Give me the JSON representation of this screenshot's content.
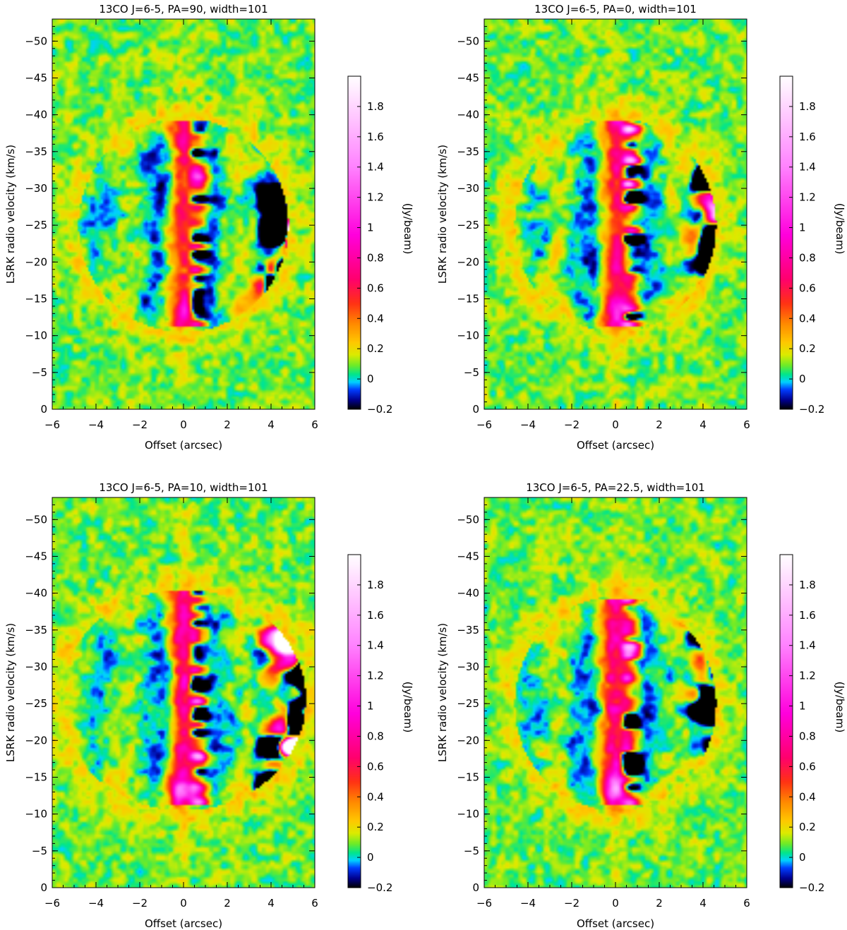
{
  "chart_data": [
    {
      "type": "heatmap",
      "title": "13CO J=6-5, PA=90, width=101",
      "xlabel": "Offset (arcsec)",
      "ylabel": "LSRK radio velocity  (km/s)",
      "colorbar_label": "(Jy/beam)",
      "xlim": [
        -6,
        6
      ],
      "ylim": [
        0,
        -53
      ],
      "x_ticks": [
        -6,
        -4,
        -2,
        0,
        2,
        4,
        6
      ],
      "y_ticks": [
        0,
        -5,
        -10,
        -15,
        -20,
        -25,
        -30,
        -35,
        -40,
        -45,
        -50
      ],
      "colorbar_range": [
        -0.2,
        2.0
      ],
      "colorbar_ticks": [
        -0.2,
        0,
        0.2,
        0.4,
        0.6,
        0.8,
        1,
        1.2,
        1.4,
        1.6,
        1.8
      ],
      "features": {
        "jet_velocity_range": [
          -12,
          -38
        ],
        "jet_offset": 0.0,
        "jet_peak": 0.55,
        "ring_halfwidth": 4.2,
        "negative_bowl": true
      }
    },
    {
      "type": "heatmap",
      "title": "13CO J=6-5, PA=0, width=101",
      "xlabel": "Offset (arcsec)",
      "ylabel": "LSRK radio velocity  (km/s)",
      "colorbar_label": "(Jy/beam)",
      "xlim": [
        -6,
        6
      ],
      "ylim": [
        0,
        -53
      ],
      "x_ticks": [
        -6,
        -4,
        -2,
        0,
        2,
        4,
        6
      ],
      "y_ticks": [
        0,
        -5,
        -10,
        -15,
        -20,
        -25,
        -30,
        -35,
        -40,
        -45,
        -50
      ],
      "colorbar_range": [
        -0.2,
        2.0
      ],
      "colorbar_ticks": [
        -0.2,
        0,
        0.2,
        0.4,
        0.6,
        0.8,
        1,
        1.2,
        1.4,
        1.6,
        1.8
      ],
      "features": {
        "jet_velocity_range": [
          -12,
          -38
        ],
        "jet_offset": 0.1,
        "jet_peak": 0.7,
        "ring_halfwidth": 4.0,
        "negative_bowl": true
      }
    },
    {
      "type": "heatmap",
      "title": "13CO J=6-5, PA=10, width=101",
      "xlabel": "Offset (arcsec)",
      "ylabel": "LSRK radio velocity  (km/s)",
      "colorbar_label": "(Jy/beam)",
      "xlim": [
        -6,
        6
      ],
      "ylim": [
        0,
        -53
      ],
      "x_ticks": [
        -6,
        -4,
        -2,
        0,
        2,
        4,
        6
      ],
      "y_ticks": [
        0,
        -5,
        -10,
        -15,
        -20,
        -25,
        -30,
        -35,
        -40,
        -45,
        -50
      ],
      "colorbar_range": [
        -0.2,
        2.0
      ],
      "colorbar_ticks": [
        -0.2,
        0,
        0.2,
        0.4,
        0.6,
        0.8,
        1,
        1.2,
        1.4,
        1.6,
        1.8
      ],
      "features": {
        "jet_velocity_range": [
          -12,
          -39
        ],
        "jet_offset": 0.0,
        "jet_peak": 0.8,
        "ring_halfwidth": 5.0,
        "negative_bowl": true
      }
    },
    {
      "type": "heatmap",
      "title": "13CO J=6-5, PA=22.5, width=101",
      "xlabel": "Offset (arcsec)",
      "ylabel": "LSRK radio velocity  (km/s)",
      "colorbar_label": "(Jy/beam)",
      "xlim": [
        -6,
        6
      ],
      "ylim": [
        0,
        -53
      ],
      "x_ticks": [
        -6,
        -4,
        -2,
        0,
        2,
        4,
        6
      ],
      "y_ticks": [
        0,
        -5,
        -10,
        -15,
        -20,
        -25,
        -30,
        -35,
        -40,
        -45,
        -50
      ],
      "colorbar_range": [
        -0.2,
        2.0
      ],
      "colorbar_ticks": [
        -0.2,
        0,
        0.2,
        0.4,
        0.6,
        0.8,
        1,
        1.2,
        1.4,
        1.6,
        1.8
      ],
      "features": {
        "jet_velocity_range": [
          -12,
          -38
        ],
        "jet_offset": 0.0,
        "jet_peak": 0.85,
        "ring_halfwidth": 4.0,
        "negative_bowl": true
      }
    }
  ]
}
